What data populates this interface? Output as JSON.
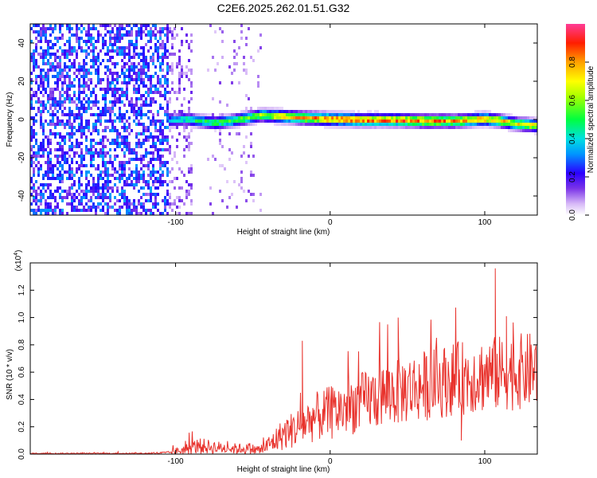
{
  "figure_title": "C2E6.2025.262.01.51.G32",
  "chart_data": [
    {
      "type": "heatmap",
      "title": "C2E6.2025.262.01.51.G32",
      "xlabel": "Height of straight line (km)",
      "ylabel": "Frequency (Hz)",
      "xlim": [
        -194,
        134
      ],
      "ylim": [
        -50,
        50
      ],
      "xticks": [
        -100,
        0,
        100
      ],
      "xtick_labels": [
        "-100",
        "0",
        "100"
      ],
      "yticks": [
        -40,
        -20,
        0,
        20,
        40
      ],
      "ytick_labels": [
        "-40",
        "-20",
        "0",
        "20",
        "40"
      ],
      "colorbar": {
        "label": "Normalized spectral amplitude",
        "range": [
          0.0,
          1.0
        ],
        "ticks": [
          0.0,
          0.2,
          0.4,
          0.6,
          0.8
        ],
        "tick_labels": [
          "0.0",
          "0.2",
          "0.4",
          "0.6",
          "0.8"
        ]
      },
      "noise_regions": [
        {
          "x_range": [
            -194,
            -105
          ],
          "freq_range": [
            -50,
            50
          ],
          "amplitude": 0.2,
          "density": "high"
        },
        {
          "x_range": [
            -105,
            -90
          ],
          "freq_range": [
            -50,
            50
          ],
          "amplitude": 0.1,
          "density": "low"
        },
        {
          "x_range": [
            -80,
            -45
          ],
          "freq_range": [
            -50,
            50
          ],
          "amplitude": 0.08,
          "density": "sparse"
        }
      ],
      "ridge": {
        "description": "Main spectral line versus height",
        "x": [
          -105,
          -95,
          -85,
          -75,
          -65,
          -55,
          -45,
          -35,
          -25,
          -15,
          0,
          20,
          40,
          60,
          80,
          100,
          110,
          120,
          134
        ],
        "frequency_hz": [
          0,
          1,
          0,
          -1,
          0,
          1.5,
          3,
          2.5,
          2,
          1.5,
          1,
          0.5,
          0.5,
          0,
          0,
          1,
          0,
          -1.5,
          -2.5
        ],
        "peak_amplitude": [
          0.4,
          0.5,
          0.55,
          0.6,
          0.6,
          0.65,
          0.7,
          0.8,
          0.85,
          0.9,
          0.95,
          0.95,
          0.95,
          0.95,
          0.9,
          0.9,
          0.85,
          0.8,
          0.8
        ]
      }
    },
    {
      "type": "line",
      "xlabel": "Height of straight line (km)",
      "ylabel": "SNR (10 * v/v)",
      "scale_label": "(x10",
      "scale_exponent": "4",
      "scale_suffix": ")",
      "xlim": [
        -194,
        134
      ],
      "ylim": [
        0,
        1.4
      ],
      "xticks": [
        -100,
        0,
        100
      ],
      "xtick_labels": [
        "-100",
        "0",
        "100"
      ],
      "yticks": [
        0.0,
        0.2,
        0.4,
        0.6,
        0.8,
        1.0,
        1.2
      ],
      "ytick_labels": [
        "0.0",
        "0.2",
        "0.4",
        "0.6",
        "0.8",
        "1.0",
        "1.2"
      ],
      "series": [
        {
          "name": "SNR",
          "color": "#e8322c",
          "trend_x": [
            -194,
            -120,
            -105,
            -95,
            -85,
            -75,
            -65,
            -55,
            -45,
            -38,
            -30,
            -20,
            -10,
            0,
            20,
            40,
            60,
            80,
            100,
            120,
            134
          ],
          "trend_y": [
            0.005,
            0.005,
            0.01,
            0.03,
            0.06,
            0.05,
            0.04,
            0.04,
            0.03,
            0.08,
            0.15,
            0.2,
            0.27,
            0.3,
            0.38,
            0.45,
            0.5,
            0.55,
            0.58,
            0.6,
            0.62
          ],
          "noise_amplitude": [
            0.004,
            0.004,
            0.01,
            0.04,
            0.06,
            0.05,
            0.04,
            0.04,
            0.04,
            0.08,
            0.12,
            0.15,
            0.18,
            0.2,
            0.22,
            0.25,
            0.26,
            0.27,
            0.28,
            0.28,
            0.28
          ],
          "notable_points": [
            {
              "x": 44,
              "y": 1.0
            },
            {
              "x": 107,
              "y": 1.36
            },
            {
              "x": 114,
              "y": 1.01
            },
            {
              "x": -18,
              "y": 0.83
            },
            {
              "x": 85,
              "y": 0.1
            }
          ]
        }
      ]
    }
  ]
}
